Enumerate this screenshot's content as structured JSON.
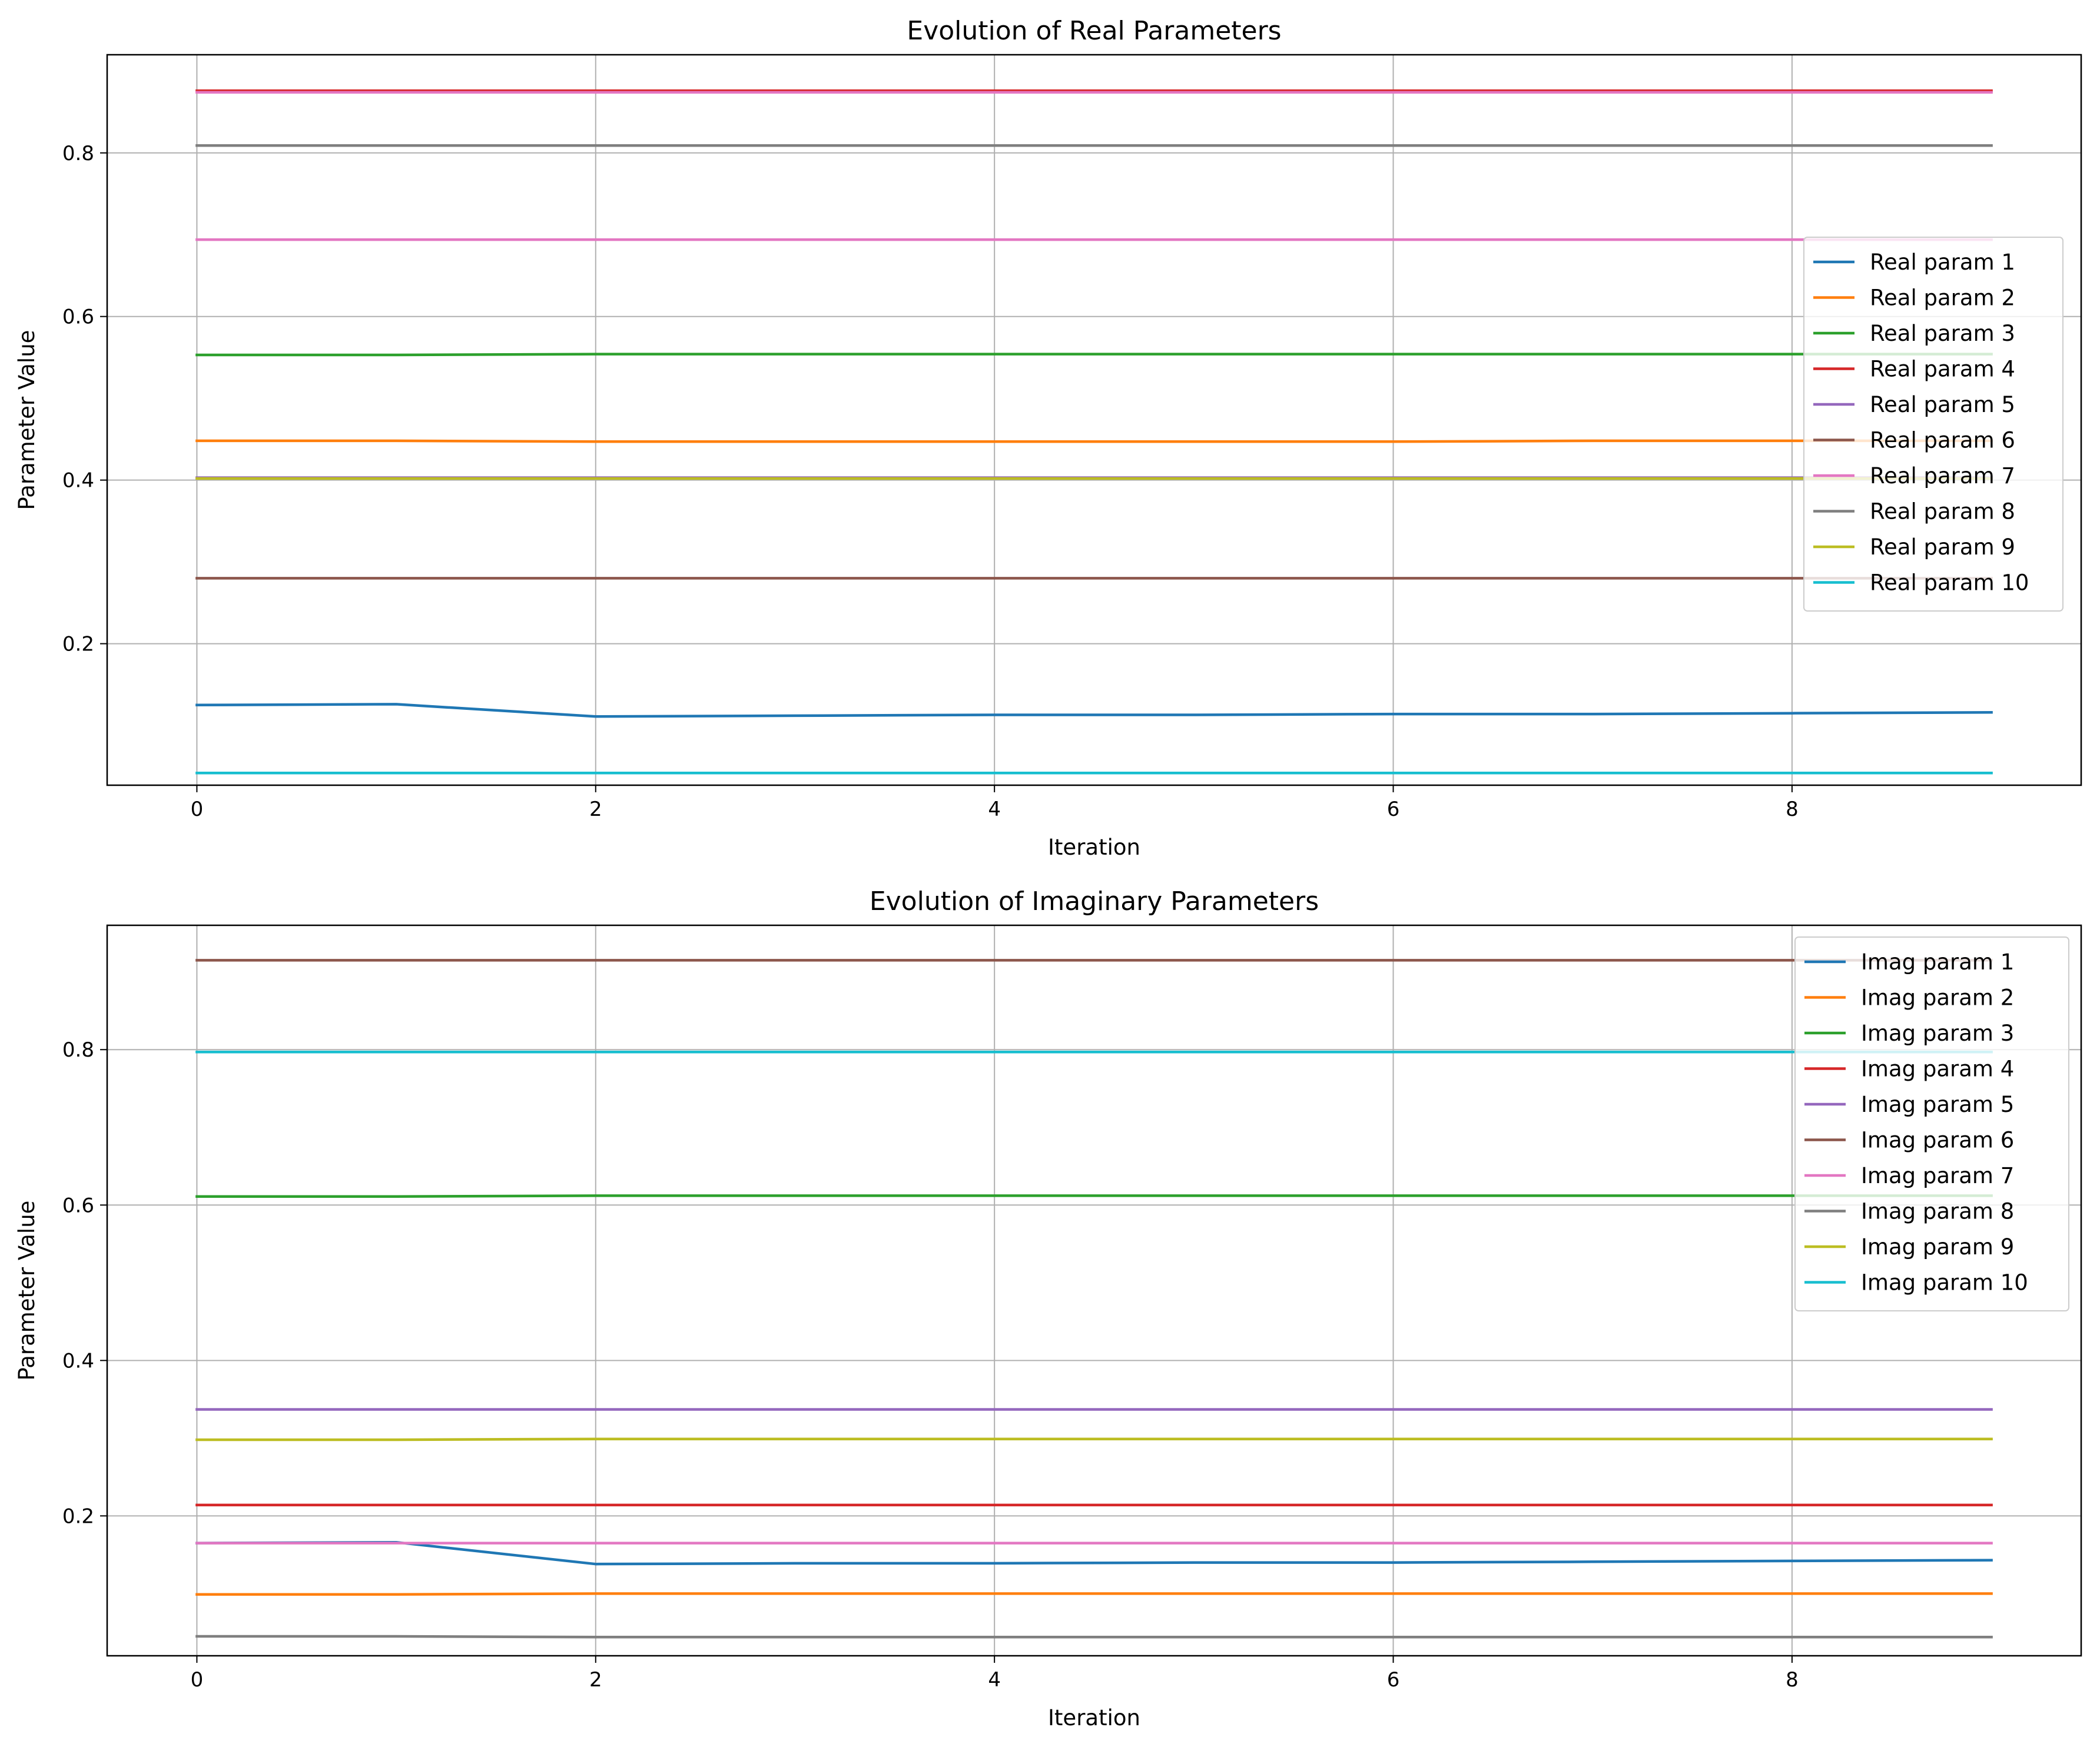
{
  "chart_data": [
    {
      "type": "line",
      "title": "Evolution of Real Parameters",
      "xlabel": "Iteration",
      "ylabel": "Parameter Value",
      "x": [
        0,
        1,
        2,
        3,
        4,
        5,
        6,
        7,
        8,
        9
      ],
      "xlim": [
        -0.45,
        9.45
      ],
      "ylim": [
        0.027,
        0.92
      ],
      "xticks": [
        0,
        2,
        4,
        6,
        8
      ],
      "xtick_labels": [
        "0",
        "2",
        "4",
        "6",
        "8"
      ],
      "yticks": [
        0.2,
        0.4,
        0.6,
        0.8
      ],
      "ytick_labels": [
        "0.2",
        "0.4",
        "0.6",
        "0.8"
      ],
      "grid": true,
      "legend": "center-right",
      "series": [
        {
          "name": "Real param 1",
          "color": "#1f77b4",
          "values": [
            0.125,
            0.126,
            0.111,
            0.112,
            0.113,
            0.113,
            0.114,
            0.114,
            0.115,
            0.116
          ]
        },
        {
          "name": "Real param 2",
          "color": "#ff7f0e",
          "values": [
            0.448,
            0.448,
            0.447,
            0.447,
            0.447,
            0.447,
            0.447,
            0.448,
            0.448,
            0.448
          ]
        },
        {
          "name": "Real param 3",
          "color": "#2ca02c",
          "values": [
            0.553,
            0.553,
            0.554,
            0.554,
            0.554,
            0.554,
            0.554,
            0.554,
            0.554,
            0.554
          ]
        },
        {
          "name": "Real param 4",
          "color": "#d62728",
          "values": [
            0.876,
            0.876,
            0.876,
            0.876,
            0.876,
            0.876,
            0.876,
            0.876,
            0.876,
            0.876
          ]
        },
        {
          "name": "Real param 5",
          "color": "#9467bd",
          "values": [
            0.403,
            0.403,
            0.403,
            0.403,
            0.403,
            0.403,
            0.403,
            0.403,
            0.403,
            0.403
          ]
        },
        {
          "name": "Real param 6",
          "color": "#8c564b",
          "values": [
            0.28,
            0.28,
            0.28,
            0.28,
            0.28,
            0.28,
            0.28,
            0.28,
            0.28,
            0.28
          ]
        },
        {
          "name": "Real param 7",
          "color": "#e377c2",
          "values": [
            0.874,
            0.874,
            0.874,
            0.874,
            0.874,
            0.874,
            0.874,
            0.874,
            0.874,
            0.874
          ]
        },
        {
          "name": "Real param 8",
          "color": "#7f7f7f",
          "values": [
            0.809,
            0.809,
            0.809,
            0.809,
            0.809,
            0.809,
            0.809,
            0.809,
            0.809,
            0.809
          ]
        },
        {
          "name": "Real param 9",
          "color": "#bcbd22",
          "values": [
            0.402,
            0.402,
            0.402,
            0.402,
            0.402,
            0.402,
            0.402,
            0.402,
            0.402,
            0.402
          ]
        },
        {
          "name": "Real param 10",
          "color": "#17becf",
          "values": [
            0.042,
            0.042,
            0.042,
            0.042,
            0.042,
            0.042,
            0.042,
            0.042,
            0.042,
            0.042
          ]
        }
      ],
      "extra_series": [
        {
          "color": "#e377c2",
          "values": [
            0.694,
            0.694,
            0.694,
            0.694,
            0.694,
            0.694,
            0.694,
            0.694,
            0.694,
            0.694
          ]
        }
      ]
    },
    {
      "type": "line",
      "title": "Evolution of Imaginary Parameters",
      "xlabel": "Iteration",
      "ylabel": "Parameter Value",
      "x": [
        0,
        1,
        2,
        3,
        4,
        5,
        6,
        7,
        8,
        9
      ],
      "xlim": [
        -0.45,
        9.45
      ],
      "ylim": [
        0.02,
        0.96
      ],
      "xticks": [
        0,
        2,
        4,
        6,
        8
      ],
      "xtick_labels": [
        "0",
        "2",
        "4",
        "6",
        "8"
      ],
      "yticks": [
        0.2,
        0.4,
        0.6,
        0.8
      ],
      "ytick_labels": [
        "0.2",
        "0.4",
        "0.6",
        "0.8"
      ],
      "grid": true,
      "legend": "top-right",
      "series": [
        {
          "name": "Imag param 1",
          "color": "#1f77b4",
          "values": [
            0.165,
            0.166,
            0.138,
            0.139,
            0.139,
            0.14,
            0.14,
            0.141,
            0.142,
            0.143
          ]
        },
        {
          "name": "Imag param 2",
          "color": "#ff7f0e",
          "values": [
            0.099,
            0.099,
            0.1,
            0.1,
            0.1,
            0.1,
            0.1,
            0.1,
            0.1,
            0.1
          ]
        },
        {
          "name": "Imag param 3",
          "color": "#2ca02c",
          "values": [
            0.611,
            0.611,
            0.612,
            0.612,
            0.612,
            0.612,
            0.612,
            0.612,
            0.612,
            0.612
          ]
        },
        {
          "name": "Imag param 4",
          "color": "#d62728",
          "values": [
            0.214,
            0.214,
            0.214,
            0.214,
            0.214,
            0.214,
            0.214,
            0.214,
            0.214,
            0.214
          ]
        },
        {
          "name": "Imag param 5",
          "color": "#9467bd",
          "values": [
            0.337,
            0.337,
            0.337,
            0.337,
            0.337,
            0.337,
            0.337,
            0.337,
            0.337,
            0.337
          ]
        },
        {
          "name": "Imag param 6",
          "color": "#8c564b",
          "values": [
            0.915,
            0.915,
            0.915,
            0.915,
            0.915,
            0.915,
            0.915,
            0.915,
            0.915,
            0.915
          ]
        },
        {
          "name": "Imag param 7",
          "color": "#e377c2",
          "values": [
            0.165,
            0.165,
            0.165,
            0.165,
            0.165,
            0.165,
            0.165,
            0.165,
            0.165,
            0.165
          ]
        },
        {
          "name": "Imag param 8",
          "color": "#7f7f7f",
          "values": [
            0.045,
            0.045,
            0.044,
            0.044,
            0.044,
            0.044,
            0.044,
            0.044,
            0.044,
            0.044
          ]
        },
        {
          "name": "Imag param 9",
          "color": "#bcbd22",
          "values": [
            0.298,
            0.298,
            0.299,
            0.299,
            0.299,
            0.299,
            0.299,
            0.299,
            0.299,
            0.299
          ]
        },
        {
          "name": "Imag param 10",
          "color": "#17becf",
          "values": [
            0.797,
            0.797,
            0.797,
            0.797,
            0.797,
            0.797,
            0.797,
            0.797,
            0.797,
            0.797
          ]
        }
      ]
    }
  ]
}
